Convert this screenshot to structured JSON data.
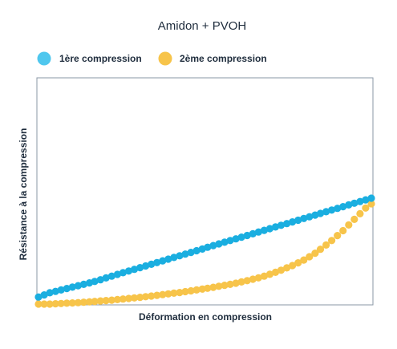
{
  "chart_data": {
    "type": "scatter",
    "title": "Amidon + PVOH",
    "xlabel": "Déformation en compression",
    "ylabel": "Résistance à la compression",
    "xlim": [
      0,
      1
    ],
    "ylim": [
      0,
      1
    ],
    "grid": false,
    "legend_position": "top-left",
    "series": [
      {
        "name": "1ère compression",
        "color": "#1aaee0",
        "x": [
          0.0,
          0.017,
          0.034,
          0.051,
          0.068,
          0.085,
          0.102,
          0.119,
          0.136,
          0.153,
          0.169,
          0.186,
          0.203,
          0.22,
          0.237,
          0.254,
          0.271,
          0.288,
          0.305,
          0.322,
          0.339,
          0.356,
          0.373,
          0.39,
          0.407,
          0.424,
          0.441,
          0.458,
          0.475,
          0.492,
          0.508,
          0.525,
          0.542,
          0.559,
          0.576,
          0.593,
          0.61,
          0.627,
          0.644,
          0.661,
          0.678,
          0.695,
          0.712,
          0.729,
          0.746,
          0.763,
          0.78,
          0.797,
          0.814,
          0.831,
          0.847,
          0.864,
          0.881,
          0.898,
          0.915,
          0.932,
          0.949,
          0.966,
          0.983,
          1.0
        ],
        "y": [
          0.05,
          0.065,
          0.08,
          0.09,
          0.1,
          0.11,
          0.12,
          0.13,
          0.14,
          0.15,
          0.16,
          0.172,
          0.185,
          0.198,
          0.21,
          0.222,
          0.234,
          0.246,
          0.258,
          0.27,
          0.282,
          0.294,
          0.306,
          0.318,
          0.33,
          0.342,
          0.354,
          0.366,
          0.378,
          0.39,
          0.402,
          0.414,
          0.426,
          0.438,
          0.45,
          0.462,
          0.474,
          0.486,
          0.498,
          0.51,
          0.522,
          0.534,
          0.546,
          0.558,
          0.57,
          0.582,
          0.594,
          0.606,
          0.618,
          0.63,
          0.642,
          0.654,
          0.666,
          0.678,
          0.69,
          0.702,
          0.714,
          0.726,
          0.738,
          0.75
        ]
      },
      {
        "name": "2ème compression",
        "color": "#f7c44a",
        "x": [
          0.0,
          0.017,
          0.034,
          0.051,
          0.068,
          0.085,
          0.102,
          0.119,
          0.136,
          0.153,
          0.169,
          0.186,
          0.203,
          0.22,
          0.237,
          0.254,
          0.271,
          0.288,
          0.305,
          0.322,
          0.339,
          0.356,
          0.373,
          0.39,
          0.407,
          0.424,
          0.441,
          0.458,
          0.475,
          0.492,
          0.508,
          0.525,
          0.542,
          0.559,
          0.576,
          0.593,
          0.61,
          0.627,
          0.644,
          0.661,
          0.678,
          0.695,
          0.712,
          0.729,
          0.746,
          0.763,
          0.78,
          0.797,
          0.814,
          0.831,
          0.847,
          0.864,
          0.881,
          0.898,
          0.915,
          0.932,
          0.949,
          0.966,
          0.983,
          1.0
        ],
        "y": [
          0.0,
          0.0,
          0.0,
          0.002,
          0.004,
          0.006,
          0.008,
          0.01,
          0.013,
          0.016,
          0.019,
          0.022,
          0.025,
          0.028,
          0.032,
          0.036,
          0.04,
          0.044,
          0.048,
          0.052,
          0.057,
          0.062,
          0.067,
          0.072,
          0.077,
          0.082,
          0.088,
          0.094,
          0.1,
          0.106,
          0.112,
          0.119,
          0.126,
          0.133,
          0.14,
          0.148,
          0.157,
          0.166,
          0.176,
          0.186,
          0.198,
          0.211,
          0.225,
          0.24,
          0.256,
          0.273,
          0.292,
          0.312,
          0.335,
          0.36,
          0.388,
          0.418,
          0.45,
          0.485,
          0.52,
          0.56,
          0.6,
          0.64,
          0.68,
          0.71
        ]
      }
    ]
  }
}
